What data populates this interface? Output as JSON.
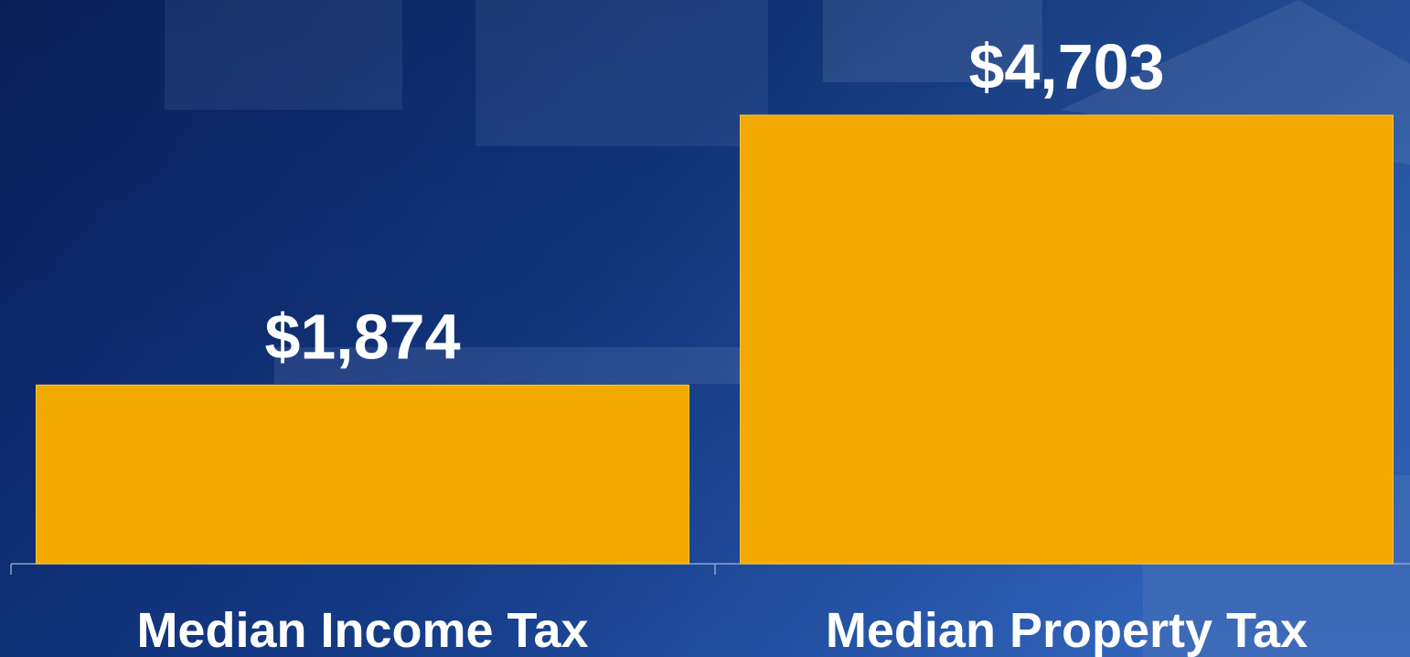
{
  "chart_data": {
    "type": "bar",
    "categories": [
      "Median Income Tax",
      "Median Property Tax"
    ],
    "values": [
      1874,
      4703
    ],
    "value_labels": [
      "$1,874",
      "$4,703"
    ],
    "color": "#f2aa00",
    "ylim": [
      0,
      5000
    ]
  }
}
